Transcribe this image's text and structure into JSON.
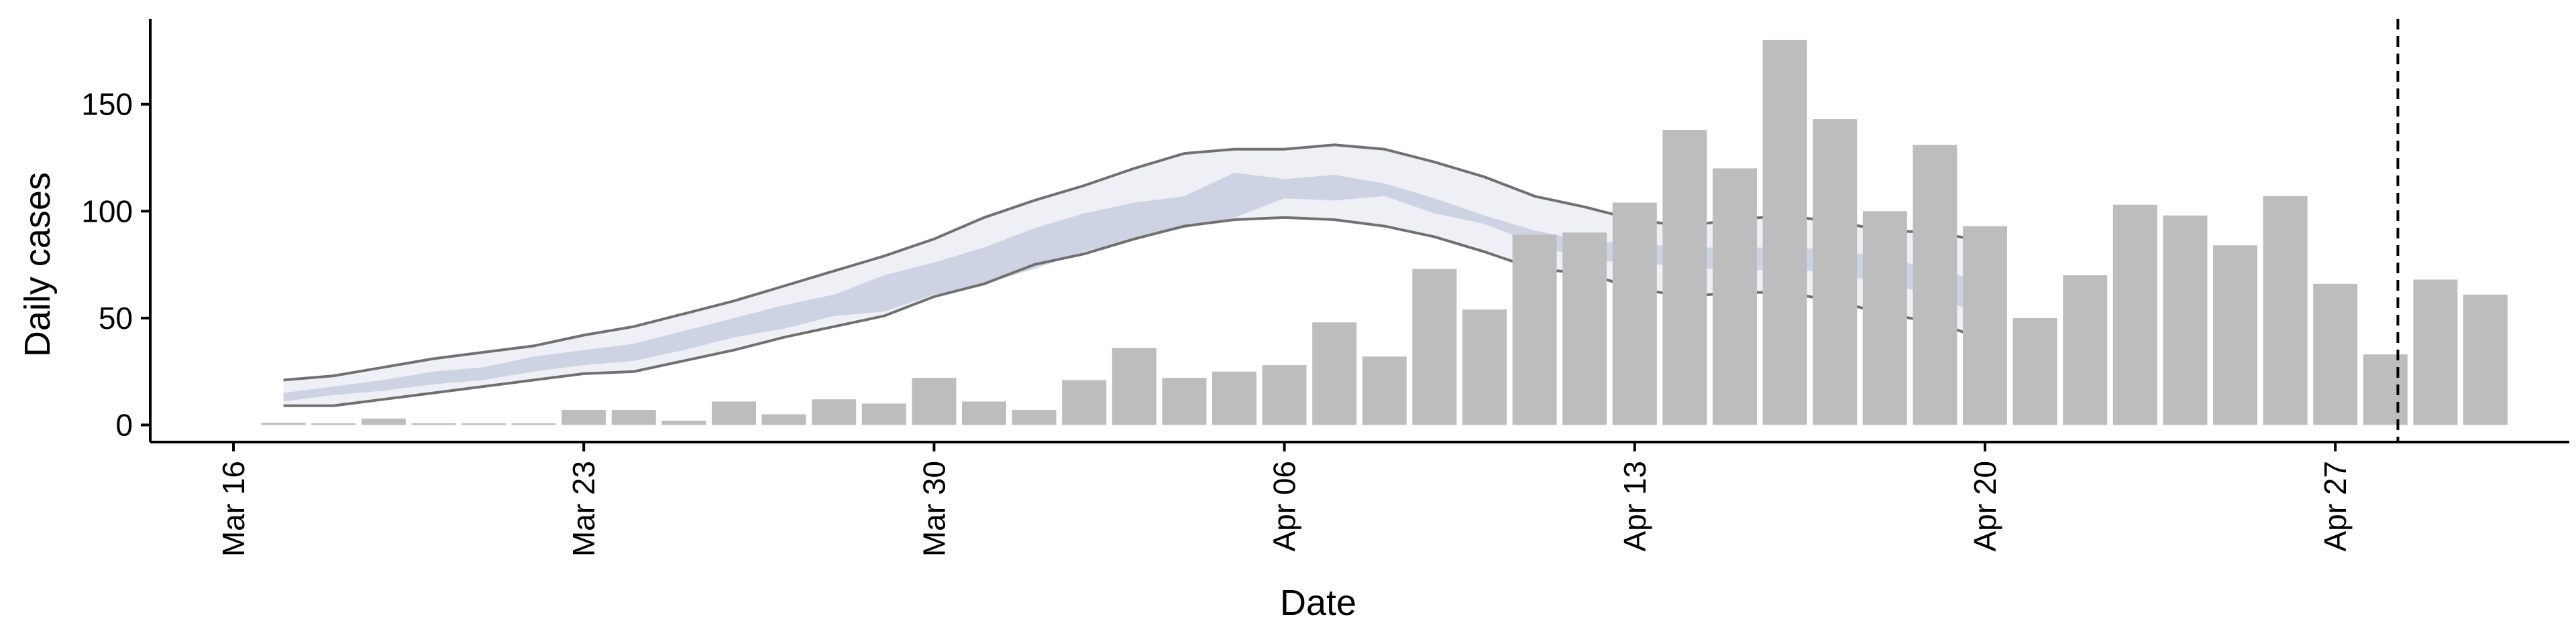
{
  "chart_data": {
    "type": "bar",
    "xlabel": "Date",
    "ylabel": "Daily cases",
    "ylim": [
      -8,
      190
    ],
    "yticks": [
      0,
      50,
      100,
      150
    ],
    "xticks": [
      {
        "day": 0,
        "label": "Mar 16"
      },
      {
        "day": 7,
        "label": "Mar 23"
      },
      {
        "day": 14,
        "label": "Mar 30"
      },
      {
        "day": 21,
        "label": "Apr 06"
      },
      {
        "day": 28,
        "label": "Apr 13"
      },
      {
        "day": 35,
        "label": "Apr 20"
      },
      {
        "day": 42,
        "label": "Apr 27"
      }
    ],
    "grid": false,
    "bar_color": "#bdbdbd",
    "band_outer_color": "#e9ebf3",
    "band_inner_color": "#c3c9dc",
    "band_line_color": "#707070",
    "bars": {
      "dates": [
        "Mar 17",
        "Mar 18",
        "Mar 19",
        "Mar 20",
        "Mar 21",
        "Mar 22",
        "Mar 23",
        "Mar 24",
        "Mar 25",
        "Mar 26",
        "Mar 27",
        "Mar 28",
        "Mar 29",
        "Mar 30",
        "Mar 31",
        "Apr 01",
        "Apr 02",
        "Apr 03",
        "Apr 04",
        "Apr 05",
        "Apr 06",
        "Apr 07",
        "Apr 08",
        "Apr 09",
        "Apr 10",
        "Apr 11",
        "Apr 12",
        "Apr 13",
        "Apr 14",
        "Apr 15",
        "Apr 16",
        "Apr 17",
        "Apr 18",
        "Apr 19",
        "Apr 20",
        "Apr 21",
        "Apr 22",
        "Apr 23",
        "Apr 24",
        "Apr 25",
        "Apr 26",
        "Apr 27",
        "Apr 28",
        "Apr 29",
        "Apr 30"
      ],
      "values": [
        1,
        0,
        3,
        0,
        0,
        0,
        7,
        7,
        2,
        11,
        5,
        12,
        10,
        22,
        11,
        7,
        21,
        36,
        22,
        25,
        28,
        48,
        32,
        73,
        54,
        89,
        90,
        104,
        138,
        120,
        180,
        143,
        100,
        131,
        93,
        50,
        70,
        103,
        98,
        84,
        107,
        66,
        33,
        68,
        61
      ]
    },
    "estimate_band": {
      "dates": [
        "Mar 17",
        "Mar 18",
        "Mar 19",
        "Mar 20",
        "Mar 21",
        "Mar 22",
        "Mar 23",
        "Mar 24",
        "Mar 25",
        "Mar 26",
        "Mar 27",
        "Mar 28",
        "Mar 29",
        "Mar 30",
        "Mar 31",
        "Apr 01",
        "Apr 02",
        "Apr 03",
        "Apr 04",
        "Apr 05",
        "Apr 06",
        "Apr 07",
        "Apr 08",
        "Apr 09",
        "Apr 10",
        "Apr 11",
        "Apr 12",
        "Apr 13",
        "Apr 14",
        "Apr 15",
        "Apr 16",
        "Apr 17",
        "Apr 18",
        "Apr 19",
        "Apr 20"
      ],
      "outer_upper": [
        21,
        23,
        27,
        31,
        34,
        37,
        42,
        46,
        52,
        58,
        65,
        72,
        79,
        87,
        97,
        105,
        112,
        120,
        127,
        129,
        129,
        131,
        129,
        123,
        116,
        107,
        102,
        96,
        93,
        96,
        98,
        95,
        91,
        90,
        86
      ],
      "outer_lower": [
        9,
        9,
        12,
        15,
        18,
        21,
        24,
        25,
        30,
        35,
        41,
        46,
        51,
        60,
        66,
        75,
        80,
        87,
        93,
        96,
        97,
        96,
        93,
        88,
        81,
        73,
        71,
        64,
        60,
        62,
        62,
        58,
        52,
        48,
        40
      ],
      "inner_upper": [
        15,
        18,
        21,
        25,
        27,
        32,
        35,
        38,
        44,
        50,
        56,
        61,
        70,
        76,
        83,
        92,
        99,
        104,
        107,
        118,
        115,
        117,
        113,
        106,
        98,
        91,
        86,
        85,
        83,
        83,
        83,
        82,
        78,
        73,
        67
      ],
      "inner_lower": [
        11,
        14,
        16,
        19,
        21,
        25,
        28,
        30,
        35,
        41,
        45,
        51,
        53,
        61,
        66,
        73,
        81,
        87,
        92,
        97,
        106,
        105,
        107,
        99,
        94,
        85,
        77,
        76,
        74,
        72,
        73,
        71,
        66,
        61,
        50
      ]
    },
    "vline": {
      "day": 43.25,
      "style": "dashed"
    }
  }
}
